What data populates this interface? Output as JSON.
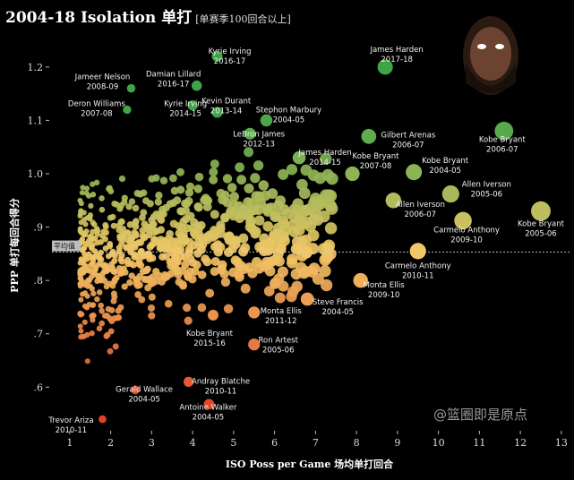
{
  "title": {
    "main": "2004-18 Isolation 单打",
    "sub": "[单赛季100回合以上]"
  },
  "watermark": "@篮圈即是原点",
  "icons": {
    "portrait": "player-portrait-icon"
  },
  "chart_data": {
    "type": "scatter",
    "xlabel": "ISO Poss per Game 场均单打回合",
    "ylabel": "PPP 单打每回合得分",
    "xlim": [
      0.5,
      13.2
    ],
    "ylim": [
      0.52,
      1.245
    ],
    "xticks": [
      1,
      2,
      3,
      4,
      5,
      6,
      7,
      8,
      9,
      10,
      11,
      12,
      13
    ],
    "yticks": [
      0.6,
      0.7,
      0.8,
      0.9,
      1.0,
      1.1,
      1.2
    ],
    "ytick_labels": [
      ".6",
      ".7",
      ".8",
      ".9",
      "1.0",
      "1.1",
      "1.2"
    ],
    "reference_line": {
      "label": "平均值",
      "y": 0.853
    },
    "color_scale": {
      "low": "#e0432b",
      "mid": "#f2c867",
      "high": "#3da447"
    },
    "grid": false,
    "labeled_points": [
      {
        "name": "James Harden",
        "season": "2017-18",
        "x": 8.7,
        "y": 1.2
      },
      {
        "name": "Kyrie Irving",
        "season": "2016-17",
        "x": 4.6,
        "y": 1.22
      },
      {
        "name": "Damian Lillard",
        "season": "2016-17",
        "x": 4.1,
        "y": 1.165
      },
      {
        "name": "Jameer Nelson",
        "season": "2008-09",
        "x": 2.5,
        "y": 1.16
      },
      {
        "name": "Kevin Durant",
        "season": "2013-14",
        "x": 4.6,
        "y": 1.115
      },
      {
        "name": "Deron Williams",
        "season": "2007-08",
        "x": 2.4,
        "y": 1.12
      },
      {
        "name": "Kyrie Irving",
        "season": "2014-15",
        "x": 4.0,
        "y": 1.128
      },
      {
        "name": "Stephon Marbury",
        "season": "2004-05",
        "x": 5.8,
        "y": 1.1
      },
      {
        "name": "LeBron James",
        "season": "2012-13",
        "x": 5.4,
        "y": 1.075
      },
      {
        "name": "Gilbert Arenas",
        "season": "2006-07",
        "x": 8.3,
        "y": 1.07
      },
      {
        "name": "Kobe Bryant",
        "season": "2006-07",
        "x": 11.6,
        "y": 1.08
      },
      {
        "name": "James Harden",
        "season": "2014-15",
        "x": 6.6,
        "y": 1.03
      },
      {
        "name": "Kobe Bryant",
        "season": "2007-08",
        "x": 7.9,
        "y": 1.0
      },
      {
        "name": "Kobe Bryant",
        "season": "2004-05",
        "x": 9.4,
        "y": 1.003
      },
      {
        "name": "Allen Iverson",
        "season": "2005-06",
        "x": 10.3,
        "y": 0.962
      },
      {
        "name": "Allen Iverson",
        "season": "2006-07",
        "x": 8.9,
        "y": 0.95
      },
      {
        "name": "Kobe Bryant",
        "season": "2005-06",
        "x": 12.5,
        "y": 0.93
      },
      {
        "name": "Carmelo Anthony",
        "season": "2009-10",
        "x": 10.6,
        "y": 0.912
      },
      {
        "name": "Carmelo Anthony",
        "season": "2010-11",
        "x": 9.5,
        "y": 0.855
      },
      {
        "name": "Monta Ellis",
        "season": "2009-10",
        "x": 8.1,
        "y": 0.8
      },
      {
        "name": "Steve Francis",
        "season": "2004-05",
        "x": 6.8,
        "y": 0.765
      },
      {
        "name": "Monta Ellis",
        "season": "2011-12",
        "x": 5.5,
        "y": 0.74
      },
      {
        "name": "Kobe Bryant",
        "season": "2015-16",
        "x": 4.5,
        "y": 0.735
      },
      {
        "name": "Ron Artest",
        "season": "2005-06",
        "x": 5.5,
        "y": 0.68
      },
      {
        "name": "Andray Blatche",
        "season": "2010-11",
        "x": 3.9,
        "y": 0.61
      },
      {
        "name": "Gerald Wallace",
        "season": "2004-05",
        "x": 2.6,
        "y": 0.595
      },
      {
        "name": "Antoine Walker",
        "season": "2004-05",
        "x": 4.4,
        "y": 0.568
      },
      {
        "name": "Trevor Ariza",
        "season": "2010-11",
        "x": 1.8,
        "y": 0.54
      }
    ],
    "unlabeled_points_note": "approx. 700 additional player-seasons concentrated between x=1.2–7 and y=0.55–1.18"
  }
}
